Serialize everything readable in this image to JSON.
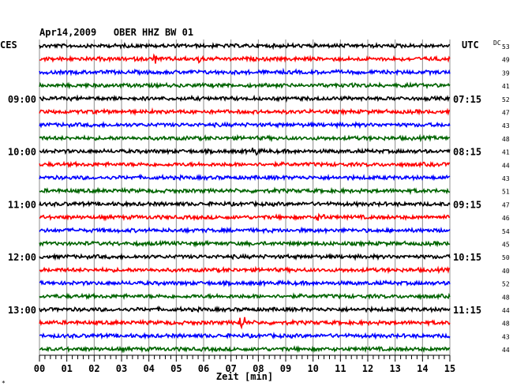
{
  "chart_data": {
    "type": "seismogram",
    "title": "Apr14,2009   OBER HHZ BW 01",
    "left_label": "CES",
    "right_label": "UTC",
    "dc_label": "DC",
    "xlabel": "Zeit [min]",
    "x_ticks": [
      "00",
      "01",
      "02",
      "03",
      "04",
      "05",
      "06",
      "07",
      "08",
      "09",
      "10",
      "11",
      "12",
      "13",
      "14",
      "15"
    ],
    "xlim": [
      0,
      15
    ],
    "left_hours": [
      {
        "trace": 4,
        "label": "09:00"
      },
      {
        "trace": 8,
        "label": "10:00"
      },
      {
        "trace": 12,
        "label": "11:00"
      },
      {
        "trace": 16,
        "label": "12:00"
      },
      {
        "trace": 20,
        "label": "13:00"
      }
    ],
    "right_hours": [
      {
        "trace": 4,
        "label": "07:15"
      },
      {
        "trace": 8,
        "label": "08:15"
      },
      {
        "trace": 12,
        "label": "09:15"
      },
      {
        "trace": 16,
        "label": "10:15"
      },
      {
        "trace": 20,
        "label": "11:15"
      }
    ],
    "dc_offsets": [
      "53",
      "49",
      "39",
      "41",
      "52",
      "47",
      "43",
      "48",
      "41",
      "44",
      "43",
      "51",
      "47",
      "46",
      "54",
      "45",
      "50",
      "40",
      "52",
      "48",
      "44",
      "48",
      "43",
      "44"
    ],
    "trace_colors": [
      "#000000",
      "#ff0000",
      "#0000ff",
      "#006400"
    ],
    "trace_count": 24,
    "grid": true,
    "corner_mark": "*"
  }
}
